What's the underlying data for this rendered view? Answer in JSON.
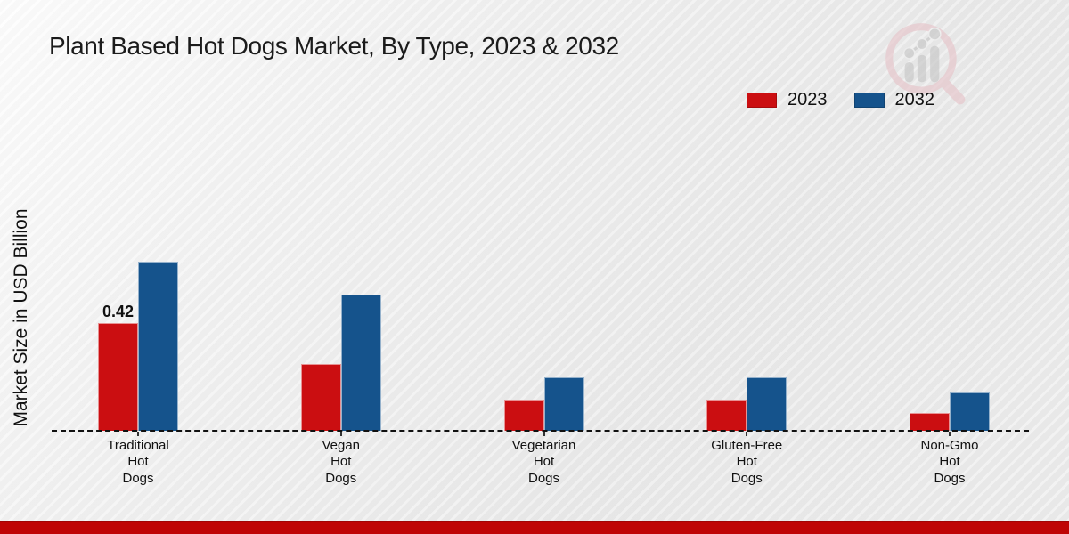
{
  "header": {
    "title": "Plant Based Hot Dogs Market, By Type, 2023 & 2032"
  },
  "axis": {
    "y_label": "Market Size in USD Billion"
  },
  "legend": {
    "position": "top-right",
    "items": [
      {
        "label": "2023",
        "color": "#cb0e11"
      },
      {
        "label": "2032",
        "color": "#15538c"
      }
    ]
  },
  "branding": {
    "logo_icon": "magnifier-bar-chart-logo"
  },
  "chart_data": {
    "type": "bar",
    "title": "Plant Based Hot Dogs Market, By Type, 2023 & 2032",
    "ylabel": "Market Size in USD Billion",
    "xlabel": "",
    "categories": [
      "Traditional\nHot\nDogs",
      "Vegan\nHot\nDogs",
      "Vegetarian\nHot\nDogs",
      "Gluten-Free\nHot\nDogs",
      "Non-Gmo\nHot\nDogs"
    ],
    "series": [
      {
        "name": "2023",
        "color": "#cb0e11",
        "values": [
          0.42,
          0.26,
          0.12,
          0.12,
          0.07
        ]
      },
      {
        "name": "2032",
        "color": "#15538c",
        "values": [
          0.66,
          0.53,
          0.21,
          0.21,
          0.15
        ]
      }
    ],
    "data_labels": [
      {
        "series_index": 0,
        "category_index": 0,
        "text": "0.42"
      }
    ],
    "ylim": [
      0,
      0.75
    ],
    "grid": false,
    "baseline_style": "dashed",
    "legend_position": "top-right"
  },
  "footer": {
    "band_color": "#bf0505"
  }
}
